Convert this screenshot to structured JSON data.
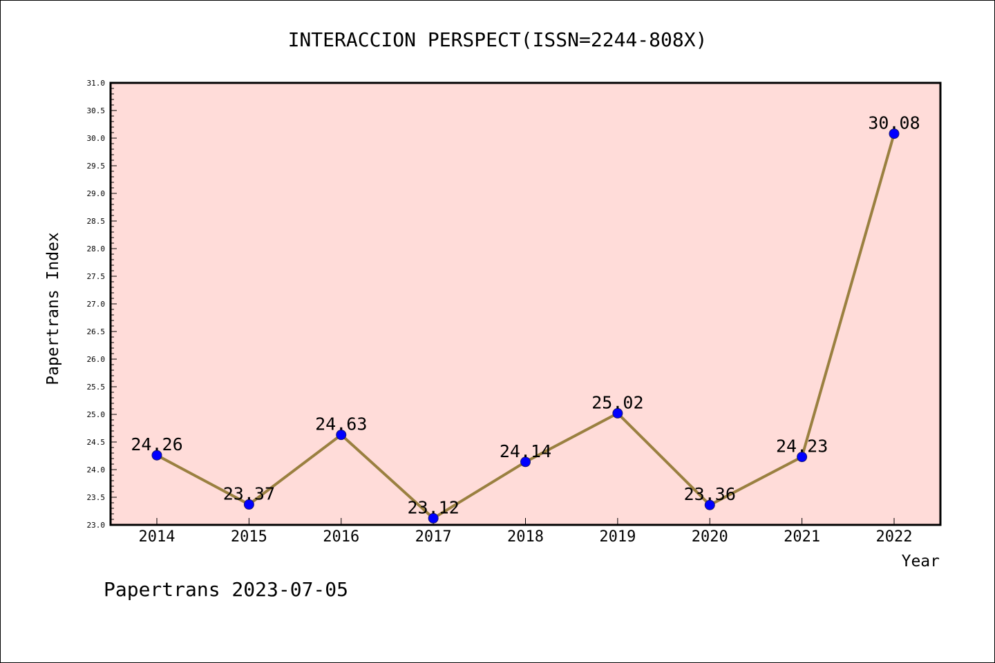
{
  "chart_data": {
    "type": "line",
    "title": "INTERACCION PERSPECT(ISSN=2244-808X)",
    "xlabel": "Year",
    "ylabel": "Papertrans Index",
    "categories": [
      "2014",
      "2015",
      "2016",
      "2017",
      "2018",
      "2019",
      "2020",
      "2021",
      "2022"
    ],
    "series": [
      {
        "values": [
          24.26,
          23.37,
          24.63,
          23.12,
          24.14,
          25.02,
          23.36,
          24.23,
          30.08
        ],
        "labels": [
          "24.26",
          "23.37",
          "24.63",
          "23.12",
          "24.14",
          "25.02",
          "23.36",
          "24.23",
          "30.08"
        ]
      }
    ],
    "ylim": [
      23.0,
      31.0
    ],
    "y_ticks": [
      "23.0",
      "23.5",
      "24.0",
      "24.5",
      "25.0",
      "25.5",
      "26.0",
      "26.5",
      "27.0",
      "27.5",
      "28.0",
      "28.5",
      "29.0",
      "29.5",
      "30.0",
      "30.5",
      "31.0"
    ],
    "grid": false,
    "colors": {
      "plot_background": "#ffdcd9",
      "line": "#9a8040",
      "marker": "#0000ff"
    }
  },
  "footer": "Papertrans 2023-07-05"
}
